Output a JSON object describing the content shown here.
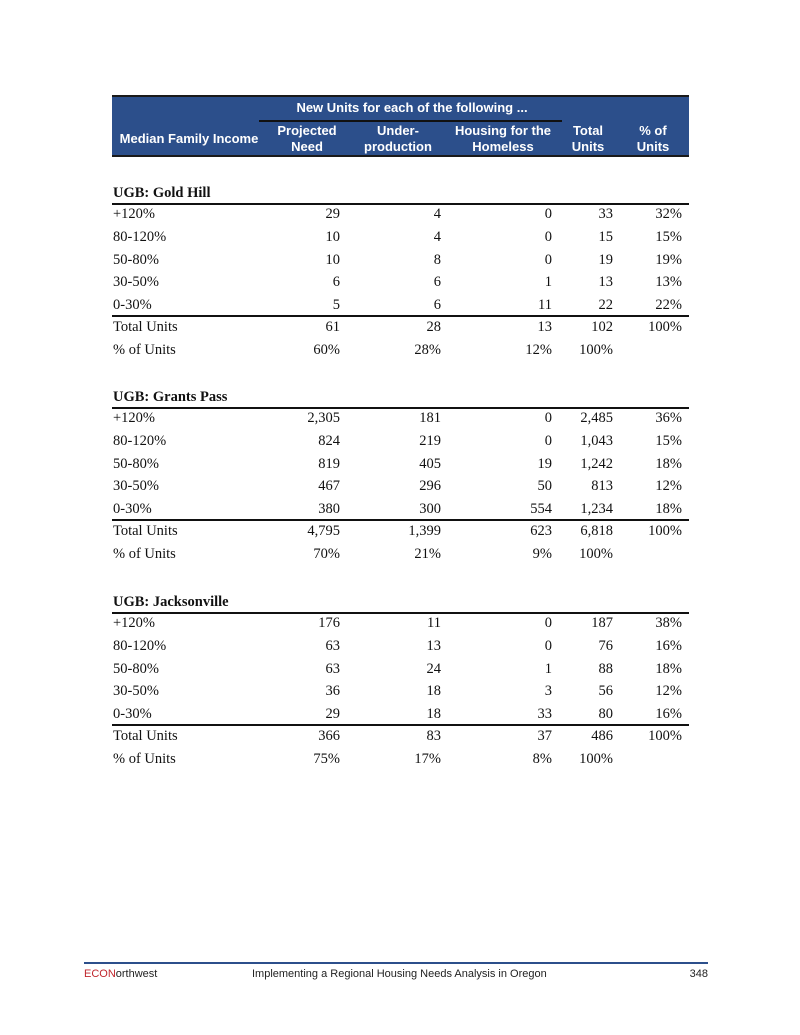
{
  "table": {
    "group_header": "New Units for each of the following ...",
    "columns": [
      "Median Family Income",
      "Projected Need",
      "Under- production",
      "Housing for the Homeless",
      "Total Units",
      "% of Units"
    ],
    "sections": [
      {
        "title": "UGB: Gold Hill",
        "rows": [
          [
            "+120%",
            "29",
            "4",
            "0",
            "33",
            "32%"
          ],
          [
            "80-120%",
            "10",
            "4",
            "0",
            "15",
            "15%"
          ],
          [
            "50-80%",
            "10",
            "8",
            "0",
            "19",
            "19%"
          ],
          [
            "30-50%",
            "6",
            "6",
            "1",
            "13",
            "13%"
          ],
          [
            "0-30%",
            "5",
            "6",
            "11",
            "22",
            "22%"
          ]
        ],
        "total": [
          "Total Units",
          "61",
          "28",
          "13",
          "102",
          "100%"
        ],
        "pct": [
          "% of Units",
          "60%",
          "28%",
          "12%",
          "100%",
          ""
        ]
      },
      {
        "title": "UGB: Grants Pass",
        "rows": [
          [
            "+120%",
            "2,305",
            "181",
            "0",
            "2,485",
            "36%"
          ],
          [
            "80-120%",
            "824",
            "219",
            "0",
            "1,043",
            "15%"
          ],
          [
            "50-80%",
            "819",
            "405",
            "19",
            "1,242",
            "18%"
          ],
          [
            "30-50%",
            "467",
            "296",
            "50",
            "813",
            "12%"
          ],
          [
            "0-30%",
            "380",
            "300",
            "554",
            "1,234",
            "18%"
          ]
        ],
        "total": [
          "Total Units",
          "4,795",
          "1,399",
          "623",
          "6,818",
          "100%"
        ],
        "pct": [
          "% of Units",
          "70%",
          "21%",
          "9%",
          "100%",
          ""
        ]
      },
      {
        "title": "UGB: Jacksonville",
        "rows": [
          [
            "+120%",
            "176",
            "11",
            "0",
            "187",
            "38%"
          ],
          [
            "80-120%",
            "63",
            "13",
            "0",
            "76",
            "16%"
          ],
          [
            "50-80%",
            "63",
            "24",
            "1",
            "88",
            "18%"
          ],
          [
            "30-50%",
            "36",
            "18",
            "3",
            "56",
            "12%"
          ],
          [
            "0-30%",
            "29",
            "18",
            "33",
            "80",
            "16%"
          ]
        ],
        "total": [
          "Total Units",
          "366",
          "83",
          "37",
          "486",
          "100%"
        ],
        "pct": [
          "% of Units",
          "75%",
          "17%",
          "8%",
          "100%",
          ""
        ]
      }
    ]
  },
  "footer": {
    "brand_red": "ECON",
    "brand_rest": "orthwest",
    "title": "Implementing a Regional Housing Needs Analysis in Oregon",
    "page": "348"
  },
  "colors": {
    "header_bg": "#2c4f8b",
    "brand_red": "#c0272d"
  }
}
